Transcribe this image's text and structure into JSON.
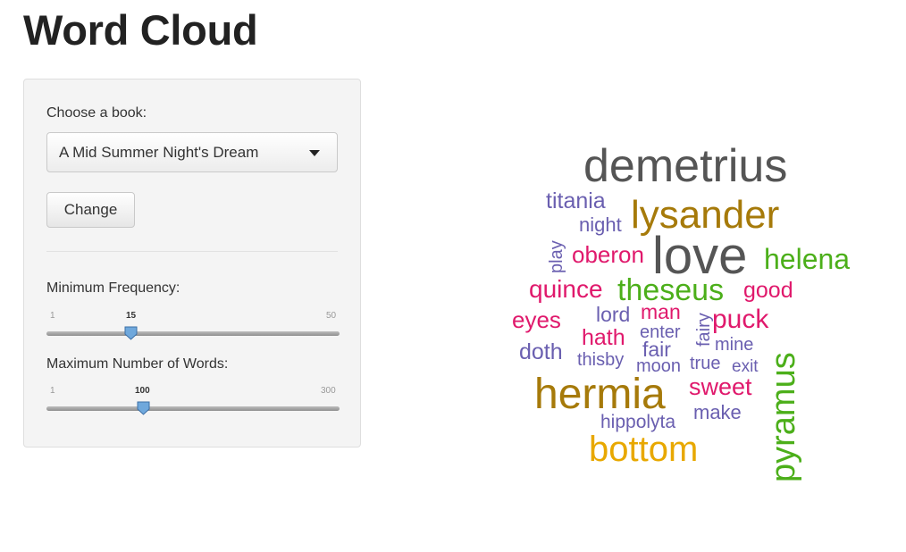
{
  "page": {
    "title": "Word Cloud"
  },
  "sidebar": {
    "book_label": "Choose a book:",
    "book_selected": "A Mid Summer Night's Dream",
    "change_button": "Change",
    "min_freq": {
      "label": "Minimum Frequency:",
      "min": "1",
      "max": "50",
      "value": "15"
    },
    "max_words": {
      "label": "Maximum Number of Words:",
      "min": "1",
      "max": "300",
      "value": "100"
    }
  },
  "colors": {
    "gray": "#555555",
    "brown": "#a67a0a",
    "green": "#4caf1a",
    "purple": "#6a5fb0",
    "pink": "#e0196c",
    "orange": "#e8a800"
  },
  "cloud": {
    "words": [
      {
        "text": "demetrius",
        "color": "gray"
      },
      {
        "text": "lysander",
        "color": "brown"
      },
      {
        "text": "titania",
        "color": "purple"
      },
      {
        "text": "night",
        "color": "purple"
      },
      {
        "text": "play",
        "color": "purple"
      },
      {
        "text": "oberon",
        "color": "pink"
      },
      {
        "text": "love",
        "color": "gray"
      },
      {
        "text": "helena",
        "color": "green"
      },
      {
        "text": "quince",
        "color": "pink"
      },
      {
        "text": "theseus",
        "color": "green"
      },
      {
        "text": "good",
        "color": "pink"
      },
      {
        "text": "eyes",
        "color": "pink"
      },
      {
        "text": "lord",
        "color": "purple"
      },
      {
        "text": "man",
        "color": "pink"
      },
      {
        "text": "fairy",
        "color": "purple"
      },
      {
        "text": "puck",
        "color": "pink"
      },
      {
        "text": "hath",
        "color": "pink"
      },
      {
        "text": "enter",
        "color": "purple"
      },
      {
        "text": "doth",
        "color": "purple"
      },
      {
        "text": "fair",
        "color": "purple"
      },
      {
        "text": "mine",
        "color": "purple"
      },
      {
        "text": "thisby",
        "color": "purple"
      },
      {
        "text": "moon",
        "color": "purple"
      },
      {
        "text": "true",
        "color": "purple"
      },
      {
        "text": "exit",
        "color": "purple"
      },
      {
        "text": "pyramus",
        "color": "green"
      },
      {
        "text": "hermia",
        "color": "brown"
      },
      {
        "text": "sweet",
        "color": "pink"
      },
      {
        "text": "make",
        "color": "purple"
      },
      {
        "text": "hippolyta",
        "color": "purple"
      },
      {
        "text": "bottom",
        "color": "orange"
      }
    ]
  }
}
